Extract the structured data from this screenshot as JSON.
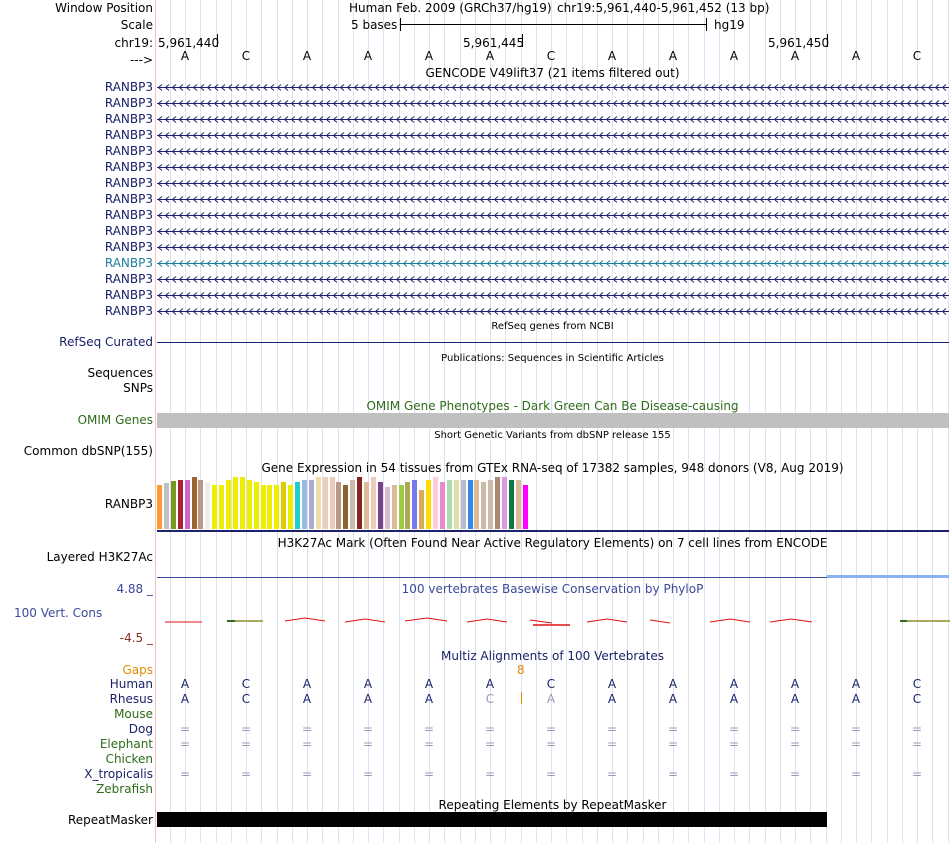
{
  "header": {
    "window_position_label": "Window Position",
    "scale_label": "Scale",
    "chrom_label": "chr19:",
    "strand_label": "--->",
    "assembly": "Human Feb. 2009 (GRCh37/hg19)",
    "position": "chr19:5,961,440-5,961,452 (13 bp)",
    "scale_text": "5 bases",
    "scale_db": "hg19",
    "ticks": [
      "5,961,440",
      "5,961,445",
      "5,961,450"
    ]
  },
  "bases": [
    "A",
    "C",
    "A",
    "A",
    "A",
    "A",
    "C",
    "A",
    "A",
    "A",
    "A",
    "A",
    "C"
  ],
  "gencode": {
    "title": "GENCODE V49lift37 (21 items filtered out)",
    "genes": [
      "RANBP3",
      "RANBP3",
      "RANBP3",
      "RANBP3",
      "RANBP3",
      "RANBP3",
      "RANBP3",
      "RANBP3",
      "RANBP3",
      "RANBP3",
      "RANBP3",
      "RANBP3",
      "RANBP3",
      "RANBP3",
      "RANBP3"
    ],
    "highlight_index": 11
  },
  "refseq": {
    "title": "RefSeq genes from NCBI",
    "label": "RefSeq Curated"
  },
  "publications": {
    "title": "Publications: Sequences in Scientific Articles",
    "labels": [
      "Sequences",
      "SNPs"
    ]
  },
  "omim": {
    "title": "OMIM Gene Phenotypes - Dark Green Can Be Disease-causing",
    "label": "OMIM Genes"
  },
  "dbsnp": {
    "title": "Short Genetic Variants from dbSNP release 155",
    "label": "Common dbSNP(155)"
  },
  "gtex": {
    "title": "Gene Expression in 54 tissues from GTEx RNA-seq of 17382 samples, 948 donors (V8, Aug 2019)",
    "label": "RANBP3",
    "tissue_levels": [
      0.85,
      0.88,
      0.92,
      0.95,
      0.95,
      1.0,
      0.95,
      0.9,
      0.85,
      0.85,
      0.95,
      1.0,
      1.0,
      0.95,
      0.9,
      0.85,
      0.85,
      0.85,
      0.9,
      0.85,
      0.9,
      0.95,
      0.95,
      1.0,
      1.0,
      1.0,
      0.9,
      0.85,
      0.95,
      1.0,
      0.9,
      1.0,
      0.9,
      0.8,
      0.85,
      0.85,
      0.9,
      0.95,
      0.75,
      0.95,
      1.0,
      0.9,
      0.95,
      0.95,
      0.95,
      0.95,
      0.95,
      0.9,
      0.95,
      1.0,
      1.0,
      0.95,
      0.95,
      0.85
    ],
    "tissue_colors": [
      "#ff9933",
      "#c0c0c0",
      "#779922",
      "#aa2233",
      "#cc66cc",
      "#996633",
      "#bb9988",
      "#eeeeee",
      "#eeee00",
      "#eeee00",
      "#eeee00",
      "#eeee00",
      "#eeee00",
      "#eeee00",
      "#eeee00",
      "#eeee00",
      "#eeee00",
      "#eeee00",
      "#ddcc00",
      "#eeee00",
      "#22cccc",
      "#99bbdd",
      "#aaaacc",
      "#eeddaa",
      "#eeccbb",
      "#eeccbb",
      "#bb9988",
      "#886633",
      "#ccbbaa",
      "#882222",
      "#ddbb99",
      "#eeccbb",
      "#774488",
      "#ddbbcc",
      "#ddbb99",
      "#99cc44",
      "#aaaa55",
      "#7777ee",
      "#ddaa55",
      "#ffdd00",
      "#ffccdd",
      "#ee88cc",
      "#aaddaa",
      "#ddddaa",
      "#bbbbcc",
      "#3388ee",
      "#ddbb99",
      "#ccbbaa",
      "#ccbbaa",
      "#aa8877",
      "#dd99dd",
      "#117744",
      "#ddbb99",
      "#ff00ff"
    ]
  },
  "h3k27ac": {
    "title": "H3K27Ac Mark (Often Found Near Active Regulatory Elements) on 7 cell lines from ENCODE",
    "label": "Layered H3K27Ac"
  },
  "phylop": {
    "title": "100 vertebrates Basewise Conservation by PhyloP",
    "label": "100 Vert. Cons",
    "max": "4.88 _",
    "min": "-4.5 _"
  },
  "multiz": {
    "title": "Multiz Alignments of 100 Vertebrates",
    "gaps_label": "Gaps",
    "gap_count": "8",
    "species": [
      "Human",
      "Rhesus",
      "Mouse",
      "Dog",
      "Elephant",
      "Chicken",
      "X_tropicalis",
      "Zebrafish"
    ],
    "human": [
      "A",
      "C",
      "A",
      "A",
      "A",
      "A",
      "C",
      "A",
      "A",
      "A",
      "A",
      "A",
      "C"
    ],
    "rhesus": [
      "A",
      "C",
      "A",
      "A",
      "A",
      "C",
      "A",
      "A",
      "A",
      "A",
      "A",
      "A",
      "C"
    ],
    "eq": "="
  },
  "repeatmasker": {
    "title": "Repeating Elements by RepeatMasker",
    "label": "RepeatMasker"
  },
  "colors": {
    "navy": "#1b2269",
    "green": "#2e6b1a",
    "orange": "#e08a00",
    "omim_gray": "#c0c0c0",
    "phylop_red": "#e01010",
    "h3k27_blue": "#8ab4f0"
  }
}
